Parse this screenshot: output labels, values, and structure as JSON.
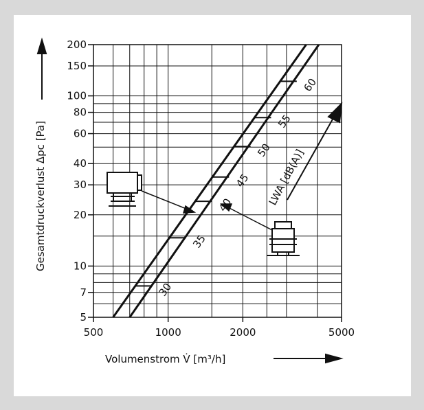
{
  "chart_data": {
    "type": "line",
    "xscale": "log",
    "yscale": "log",
    "xlim": [
      500,
      5000
    ],
    "ylim": [
      5,
      200
    ],
    "xlabel": "Volumenstrom V̇ [m³/h]",
    "ylabel": "Gesamtdruckverlust Δpc [Pa]",
    "xticks": [
      {
        "value": 500,
        "label": "500"
      },
      {
        "value": 1000,
        "label": "1000"
      },
      {
        "value": 2000,
        "label": "2000"
      },
      {
        "value": 5000,
        "label": "5000"
      }
    ],
    "yticks": [
      {
        "value": 5,
        "label": "5"
      },
      {
        "value": 7,
        "label": "7"
      },
      {
        "value": 10,
        "label": "10"
      },
      {
        "value": 20,
        "label": "20"
      },
      {
        "value": 30,
        "label": "30"
      },
      {
        "value": 40,
        "label": "40"
      },
      {
        "value": 60,
        "label": "60"
      },
      {
        "value": 80,
        "label": "80"
      },
      {
        "value": 100,
        "label": "100"
      },
      {
        "value": 150,
        "label": "150"
      },
      {
        "value": 200,
        "label": "200"
      }
    ],
    "xgrid": [
      500,
      600,
      700,
      800,
      900,
      1000,
      1500,
      2000,
      2500,
      3000,
      4000,
      5000
    ],
    "ygrid": [
      5,
      6,
      7,
      8,
      9,
      10,
      15,
      20,
      30,
      40,
      50,
      60,
      70,
      80,
      90,
      100,
      150,
      200
    ],
    "series": [
      {
        "name": "",
        "x": [
          600,
          3600
        ],
        "y": [
          5,
          200
        ]
      },
      {
        "name": "",
        "x": [
          700,
          4050
        ],
        "y": [
          5,
          200
        ]
      }
    ],
    "sound_power_label": "LWA [dB(A)]",
    "sound_levels": [
      {
        "label": "30",
        "x": 860
      },
      {
        "label": "35",
        "x": 1180
      },
      {
        "label": "40",
        "x": 1500
      },
      {
        "label": "45",
        "x": 1760
      },
      {
        "label": "50",
        "x": 2150
      },
      {
        "label": "55",
        "x": 2600
      },
      {
        "label": "60",
        "x": 3300
      }
    ]
  }
}
